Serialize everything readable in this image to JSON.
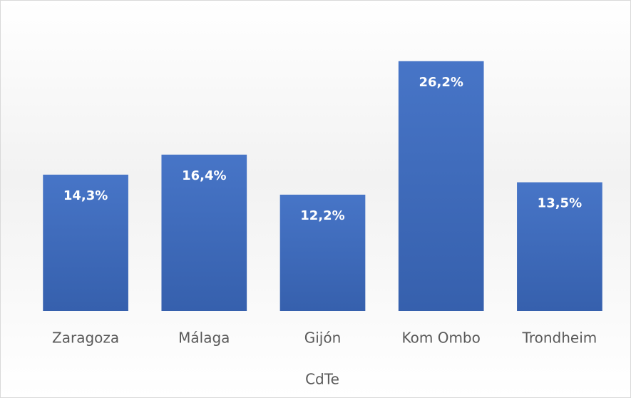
{
  "chart_data": {
    "type": "bar",
    "x_label": "CdTe",
    "categories": [
      "Zaragoza",
      "Málaga",
      "Gijón",
      "Kom Ombo",
      "Trondheim"
    ],
    "values": [
      14.3,
      16.4,
      12.2,
      26.2,
      13.5
    ],
    "value_labels": [
      "14,3%",
      "16,4%",
      "12,2%",
      "26,2%",
      "13,5%"
    ],
    "color": "#4472c4",
    "ylim": [
      0,
      30
    ]
  }
}
